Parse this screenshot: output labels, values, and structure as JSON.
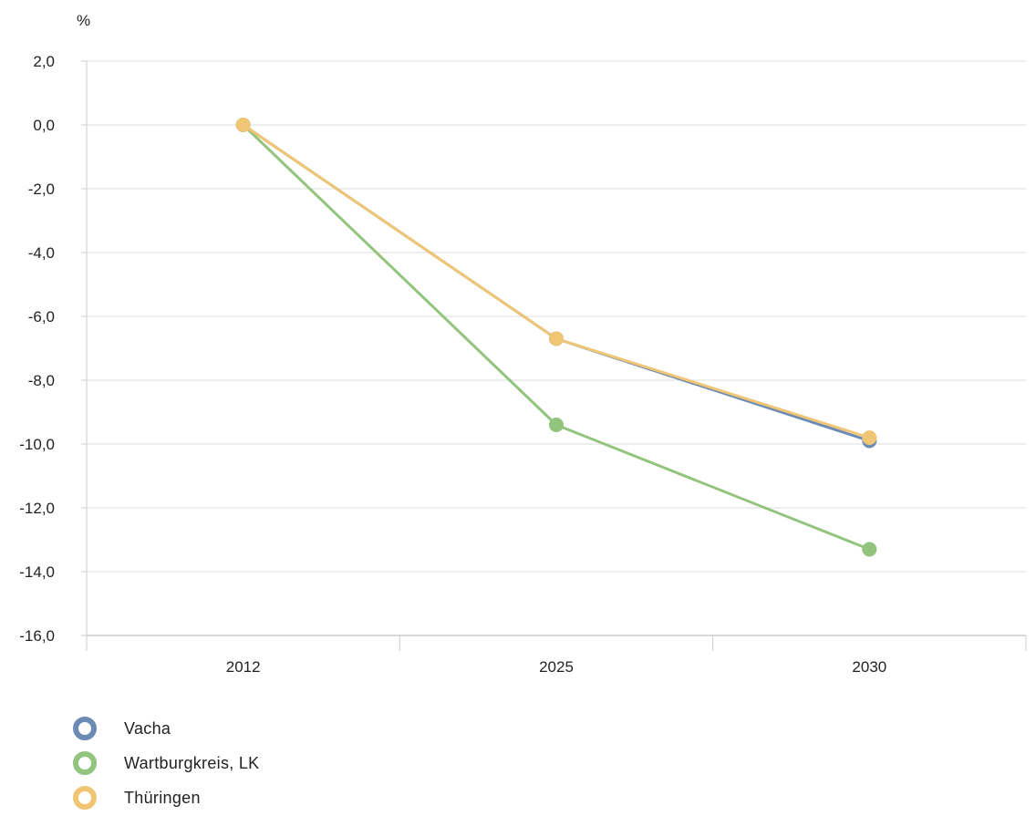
{
  "chart_data": {
    "type": "line",
    "ylabel": "%",
    "categories": [
      "2012",
      "2025",
      "2030"
    ],
    "ylim": [
      -16,
      2
    ],
    "yticks": [
      2,
      0,
      -2,
      -4,
      -6,
      -8,
      -10,
      -12,
      -14,
      -16
    ],
    "ytick_labels": [
      "2,0",
      "0,0",
      "-2,0",
      "-4,0",
      "-6,0",
      "-8,0",
      "-10,0",
      "-12,0",
      "-14,0",
      "-16,0"
    ],
    "grid": true,
    "legend_position": "bottom-left",
    "series": [
      {
        "name": "Vacha",
        "color": "#6b8bb5",
        "values": [
          0.0,
          -6.7,
          -9.9
        ]
      },
      {
        "name": "Wartburgkreis, LK",
        "color": "#93c47d",
        "values": [
          0.0,
          -9.4,
          -13.3
        ]
      },
      {
        "name": "Thüringen",
        "color": "#f0c674",
        "values": [
          0.0,
          -6.7,
          -9.8
        ]
      }
    ]
  }
}
